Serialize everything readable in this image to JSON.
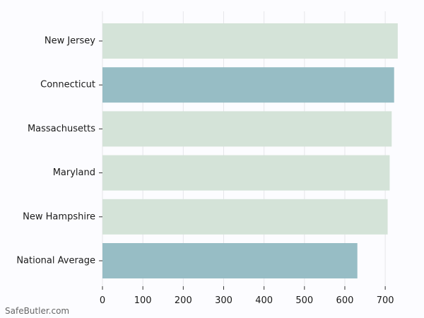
{
  "chart_data": {
    "type": "bar",
    "orientation": "horizontal",
    "categories": [
      "New Jersey",
      "Connecticut",
      "Massachusetts",
      "Maryland",
      "New Hampshire",
      "National Average"
    ],
    "values": [
      731,
      722,
      716,
      711,
      706,
      631
    ],
    "bar_colors": [
      "#d4e3d8",
      "#97bdc5",
      "#d4e3d8",
      "#d4e3d8",
      "#d4e3d8",
      "#97bdc5"
    ],
    "xlim": [
      0,
      740
    ],
    "xticks": [
      0,
      100,
      200,
      300,
      400,
      500,
      600,
      700
    ],
    "grid": true,
    "title": "",
    "xlabel": "",
    "ylabel": ""
  },
  "watermark": "SafeButler.com"
}
